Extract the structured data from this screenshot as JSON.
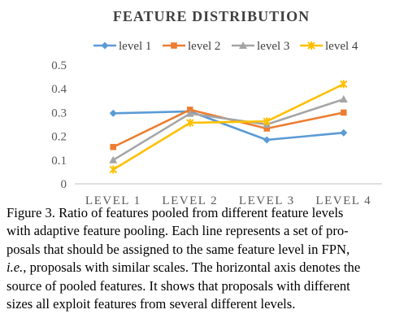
{
  "chart_data": {
    "type": "line",
    "title": "FEATURE DISTRIBUTION",
    "categories": [
      "LEVEL 1",
      "LEVEL 2",
      "LEVEL 3",
      "LEVEL 4"
    ],
    "yticks": [
      "0",
      "0.1",
      "0.2",
      "0.3",
      "0.4",
      "0.5"
    ],
    "ylim": [
      0,
      0.5
    ],
    "grid": false,
    "legend_position": "top",
    "series": [
      {
        "name": "level 1",
        "color": "#5B9BD5",
        "marker": "diamond",
        "values": [
          0.297,
          0.305,
          0.185,
          0.215
        ]
      },
      {
        "name": "level 2",
        "color": "#ED7D31",
        "marker": "square",
        "values": [
          0.155,
          0.312,
          0.233,
          0.3
        ]
      },
      {
        "name": "level 3",
        "color": "#A5A5A5",
        "marker": "triangle",
        "values": [
          0.1,
          0.296,
          0.25,
          0.356
        ]
      },
      {
        "name": "level 4",
        "color": "#FFC000",
        "marker": "star",
        "values": [
          0.06,
          0.257,
          0.263,
          0.42
        ]
      }
    ]
  },
  "caption": {
    "lines": [
      [
        {
          "t": "Figure 3. Ratio of features pooled from different feature levels"
        }
      ],
      [
        {
          "t": "with adaptive feature pooling.  Each line represents a set of pro-"
        }
      ],
      [
        {
          "t": "posals that should be assigned to the same feature level in FPN,"
        }
      ],
      [
        {
          "t": "i.e.",
          "em": true
        },
        {
          "t": ", proposals with similar scales. The horizontal axis denotes the"
        }
      ],
      [
        {
          "t": "source of pooled features.  It shows that proposals with different"
        }
      ],
      [
        {
          "t": "sizes all exploit features from several different levels."
        }
      ]
    ]
  }
}
